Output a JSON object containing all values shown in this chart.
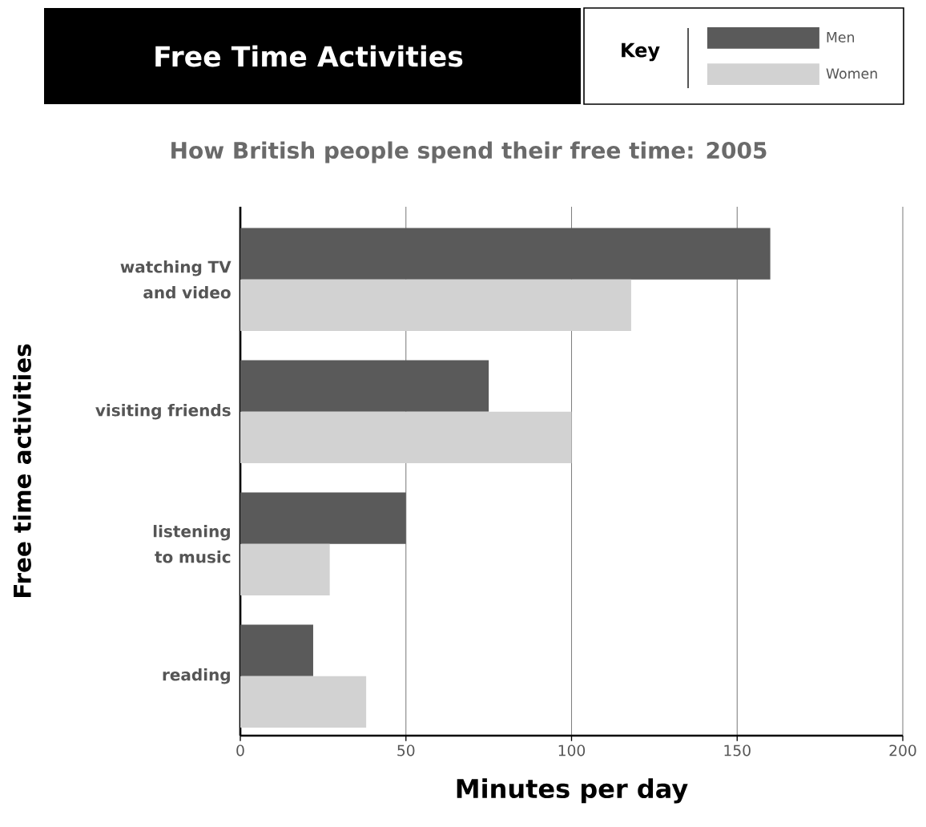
{
  "chart_data": {
    "type": "bar",
    "orientation": "horizontal",
    "title": "Free Time Activities",
    "subtitle": "How British people spend their free time: 2005",
    "xlabel": "Minutes per day",
    "ylabel": "Free time activities",
    "legend_title": "Key",
    "legend": "top right",
    "grid": "x",
    "categories": [
      "watching TV and video",
      "visiting friends",
      "listening to music",
      "reading"
    ],
    "series": [
      {
        "name": "Men",
        "color": "#5a5a5a",
        "values": [
          160,
          75,
          50,
          22
        ]
      },
      {
        "name": "Women",
        "color": "#d2d2d2",
        "values": [
          118,
          100,
          27,
          38
        ]
      }
    ],
    "xlim": [
      0,
      200
    ],
    "xticks": [
      0,
      50,
      100,
      150,
      200
    ]
  }
}
